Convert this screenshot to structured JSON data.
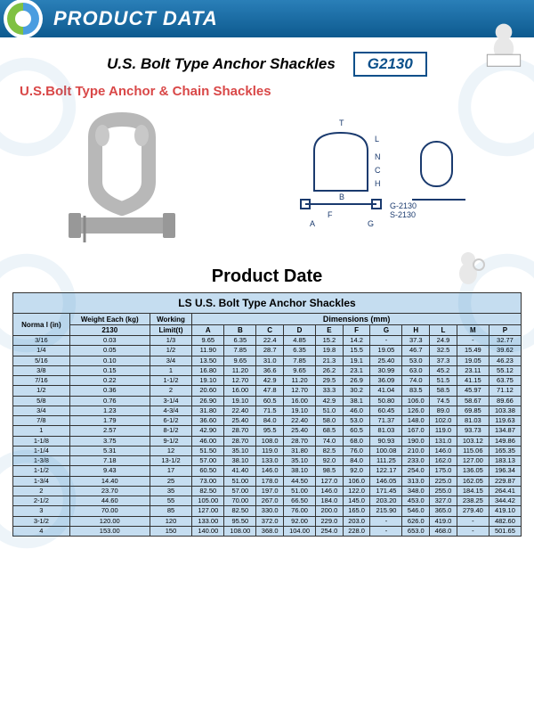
{
  "header": {
    "title": "PRODUCT DATA"
  },
  "main_title": "U.S. Bolt  Type Anchor Shackles",
  "model": "G2130",
  "subtitle": "U.S.Bolt Type Anchor & Chain Shackles",
  "diagram_labels": {
    "t": "T",
    "l": "L",
    "n": "N",
    "c": "C",
    "h": "H",
    "b": "B",
    "f": "F",
    "a": "A",
    "g": "G",
    "model1": "G-2130",
    "model2": "S-2130"
  },
  "section_title": "Product Date",
  "table": {
    "title": "LS  U.S. Bolt  Type Anchor Shackles",
    "headers": {
      "nominal": "Norma\nl (in)",
      "weight": "Weight\nEach\n(kg)",
      "working": "Working",
      "dimensions": "Dimensions (mm)",
      "sub_nominal": "",
      "sub_weight": "2130",
      "sub_working": "Limit(t)",
      "cols": [
        "A",
        "B",
        "C",
        "D",
        "E",
        "F",
        "G",
        "H",
        "L",
        "M",
        "P"
      ]
    },
    "rows": [
      [
        "3/16",
        "0.03",
        "1/3",
        "9.65",
        "6.35",
        "22.4",
        "4.85",
        "15.2",
        "14.2",
        "-",
        "37.3",
        "24.9",
        "-",
        "32.77"
      ],
      [
        "1/4",
        "0.05",
        "1/2",
        "11.90",
        "7.85",
        "28.7",
        "6.35",
        "19.8",
        "15.5",
        "19.05",
        "46.7",
        "32.5",
        "15.49",
        "39.62"
      ],
      [
        "5/16",
        "0.10",
        "3/4",
        "13.50",
        "9.65",
        "31.0",
        "7.85",
        "21.3",
        "19.1",
        "25.40",
        "53.0",
        "37.3",
        "19.05",
        "46.23"
      ],
      [
        "3/8",
        "0.15",
        "1",
        "16.80",
        "11.20",
        "36.6",
        "9.65",
        "26.2",
        "23.1",
        "30.99",
        "63.0",
        "45.2",
        "23.11",
        "55.12"
      ],
      [
        "7/16",
        "0.22",
        "1-1/2",
        "19.10",
        "12.70",
        "42.9",
        "11.20",
        "29.5",
        "26.9",
        "36.09",
        "74.0",
        "51.5",
        "41.15",
        "63.75"
      ],
      [
        "1/2",
        "0.36",
        "2",
        "20.60",
        "16.00",
        "47.8",
        "12.70",
        "33.3",
        "30.2",
        "41.04",
        "83.5",
        "58.5",
        "45.97",
        "71.12"
      ],
      [
        "5/8",
        "0.76",
        "3-1/4",
        "26.90",
        "19.10",
        "60.5",
        "16.00",
        "42.9",
        "38.1",
        "50.80",
        "106.0",
        "74.5",
        "58.67",
        "89.66"
      ],
      [
        "3/4",
        "1.23",
        "4-3/4",
        "31.80",
        "22.40",
        "71.5",
        "19.10",
        "51.0",
        "46.0",
        "60.45",
        "126.0",
        "89.0",
        "69.85",
        "103.38"
      ],
      [
        "7/8",
        "1.79",
        "6-1/2",
        "36.60",
        "25.40",
        "84.0",
        "22.40",
        "58.0",
        "53.0",
        "71.37",
        "148.0",
        "102.0",
        "81.03",
        "119.63"
      ],
      [
        "1",
        "2.57",
        "8-1/2",
        "42.90",
        "28.70",
        "95.5",
        "25.40",
        "68.5",
        "60.5",
        "81.03",
        "167.0",
        "119.0",
        "93.73",
        "134.87"
      ],
      [
        "1-1/8",
        "3.75",
        "9-1/2",
        "46.00",
        "28.70",
        "108.0",
        "28.70",
        "74.0",
        "68.0",
        "90.93",
        "190.0",
        "131.0",
        "103.12",
        "149.86"
      ],
      [
        "1-1/4",
        "5.31",
        "12",
        "51.50",
        "35.10",
        "119.0",
        "31.80",
        "82.5",
        "76.0",
        "100.08",
        "210.0",
        "146.0",
        "115.06",
        "165.35"
      ],
      [
        "1-3/8",
        "7.18",
        "13-1/2",
        "57.00",
        "38.10",
        "133.0",
        "35.10",
        "92.0",
        "84.0",
        "111.25",
        "233.0",
        "162.0",
        "127.00",
        "183.13"
      ],
      [
        "1-1/2",
        "9.43",
        "17",
        "60.50",
        "41.40",
        "146.0",
        "38.10",
        "98.5",
        "92.0",
        "122.17",
        "254.0",
        "175.0",
        "136.05",
        "196.34"
      ],
      [
        "1-3/4",
        "14.40",
        "25",
        "73.00",
        "51.00",
        "178.0",
        "44.50",
        "127.0",
        "106.0",
        "146.05",
        "313.0",
        "225.0",
        "162.05",
        "229.87"
      ],
      [
        "2",
        "23.70",
        "35",
        "82.50",
        "57.00",
        "197.0",
        "51.00",
        "146.0",
        "122.0",
        "171.45",
        "348.0",
        "255.0",
        "184.15",
        "264.41"
      ],
      [
        "2-1/2",
        "44.60",
        "55",
        "105.00",
        "70.00",
        "267.0",
        "66.50",
        "184.0",
        "145.0",
        "203.20",
        "453.0",
        "327.0",
        "238.25",
        "344.42"
      ],
      [
        "3",
        "70.00",
        "85",
        "127.00",
        "82.50",
        "330.0",
        "76.00",
        "200.0",
        "165.0",
        "215.90",
        "546.0",
        "365.0",
        "279.40",
        "419.10"
      ],
      [
        "3-1/2",
        "120.00",
        "120",
        "133.00",
        "95.50",
        "372.0",
        "92.00",
        "229.0",
        "203.0",
        "-",
        "626.0",
        "419.0",
        "-",
        "482.60"
      ],
      [
        "4",
        "153.00",
        "150",
        "140.00",
        "108.00",
        "368.0",
        "104.00",
        "254.0",
        "228.0",
        "-",
        "653.0",
        "468.0",
        "-",
        "501.65"
      ]
    ]
  },
  "style": {
    "header_bg": "#0d5a8f",
    "table_bg": "#c5ddf0",
    "border": "#333333",
    "accent": "#d94848",
    "model_border": "#0a4f8a"
  }
}
